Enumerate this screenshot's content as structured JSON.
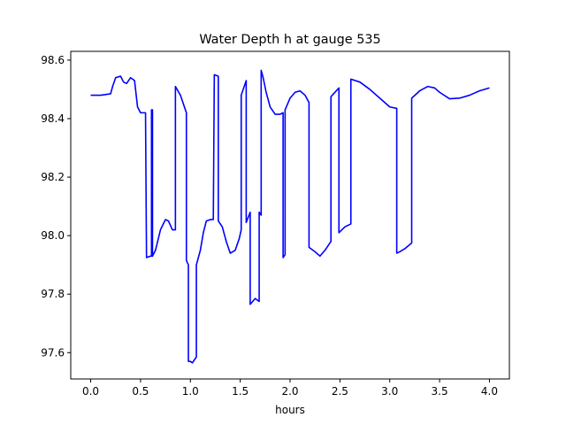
{
  "chart_data": {
    "type": "line",
    "title": "Water Depth h at gauge 535",
    "xlabel": "hours",
    "ylabel": "",
    "xlim": [
      -0.2,
      4.2
    ],
    "ylim": [
      97.51,
      98.63
    ],
    "xticks": [
      0.0,
      0.5,
      1.0,
      1.5,
      2.0,
      2.5,
      3.0,
      3.5,
      4.0
    ],
    "xtick_labels": [
      "0.0",
      "0.5",
      "1.0",
      "1.5",
      "2.0",
      "2.5",
      "3.0",
      "3.5",
      "4.0"
    ],
    "yticks": [
      97.6,
      97.8,
      98.0,
      98.2,
      98.4,
      98.6
    ],
    "ytick_labels": [
      "97.6",
      "97.8",
      "98.0",
      "98.2",
      "98.4",
      "98.6"
    ],
    "grid": false,
    "color": "#0000ff",
    "series": [
      {
        "x": [
          0.0,
          0.1,
          0.2,
          0.22,
          0.25,
          0.3,
          0.33,
          0.36,
          0.4,
          0.44,
          0.47,
          0.5,
          0.53,
          0.55,
          0.56,
          0.56,
          0.6,
          0.61,
          0.61,
          0.62,
          0.62,
          0.65,
          0.7,
          0.75,
          0.78,
          0.82,
          0.85,
          0.85,
          0.9,
          0.95,
          0.96,
          0.96,
          0.98,
          0.98,
          0.99,
          1.0,
          1.02,
          1.05,
          1.06,
          1.06,
          1.1,
          1.13,
          1.16,
          1.2,
          1.23,
          1.24,
          1.24,
          1.28,
          1.28,
          1.32,
          1.36,
          1.4,
          1.45,
          1.49,
          1.51,
          1.51,
          1.56,
          1.56,
          1.6,
          1.6,
          1.65,
          1.69,
          1.69,
          1.71,
          1.71,
          1.73,
          1.76,
          1.8,
          1.85,
          1.9,
          1.93,
          1.93,
          1.95,
          1.95,
          2.0,
          2.05,
          2.1,
          2.15,
          2.19,
          2.19,
          2.25,
          2.3,
          2.35,
          2.41,
          2.41,
          2.49,
          2.49,
          2.55,
          2.61,
          2.61,
          2.7,
          2.8,
          2.9,
          3.0,
          3.07,
          3.07,
          3.1,
          3.15,
          3.22,
          3.22,
          3.3,
          3.38,
          3.45,
          3.5,
          3.6,
          3.7,
          3.8,
          3.9,
          4.0
        ],
        "y": [
          98.48,
          98.48,
          98.485,
          98.51,
          98.54,
          98.545,
          98.525,
          98.52,
          98.54,
          98.53,
          98.44,
          98.42,
          98.42,
          98.42,
          97.925,
          97.925,
          97.93,
          97.93,
          98.43,
          98.43,
          97.93,
          97.95,
          98.02,
          98.055,
          98.05,
          98.02,
          98.02,
          98.51,
          98.48,
          98.43,
          98.42,
          97.915,
          97.9,
          97.57,
          97.57,
          97.57,
          97.565,
          97.58,
          97.585,
          97.9,
          97.95,
          98.01,
          98.05,
          98.055,
          98.055,
          98.55,
          98.55,
          98.545,
          98.05,
          98.03,
          97.98,
          97.94,
          97.95,
          97.99,
          98.02,
          98.48,
          98.53,
          98.045,
          98.08,
          97.765,
          97.785,
          97.775,
          98.08,
          98.07,
          98.565,
          98.54,
          98.49,
          98.44,
          98.415,
          98.415,
          98.42,
          97.925,
          97.935,
          98.43,
          98.47,
          98.49,
          98.495,
          98.48,
          98.455,
          97.96,
          97.945,
          97.93,
          97.95,
          97.98,
          98.475,
          98.505,
          98.01,
          98.03,
          98.04,
          98.535,
          98.525,
          98.5,
          98.47,
          98.44,
          98.435,
          97.94,
          97.945,
          97.955,
          97.975,
          98.47,
          98.495,
          98.51,
          98.505,
          98.49,
          98.468,
          98.47,
          98.48,
          98.495,
          98.505
        ]
      }
    ]
  }
}
